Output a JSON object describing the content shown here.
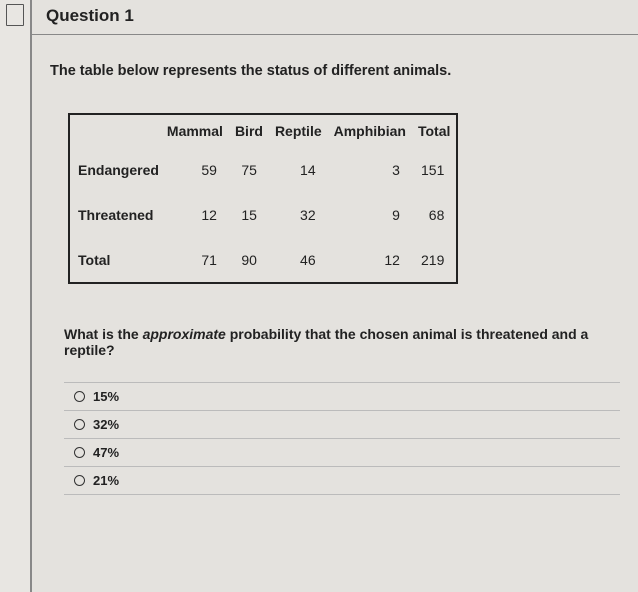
{
  "header": {
    "title": "Question 1"
  },
  "prompt": "The table below represents the status of different animals.",
  "table": {
    "columns": [
      "",
      "Mammal",
      "Bird",
      "Reptile",
      "Amphibian",
      "Total"
    ],
    "rows": [
      {
        "label": "Endangered",
        "values": [
          "59",
          "75",
          "14",
          "3",
          "151"
        ]
      },
      {
        "label": "Threatened",
        "values": [
          "12",
          "15",
          "32",
          "9",
          "68"
        ]
      },
      {
        "label": "Total",
        "values": [
          "71",
          "90",
          "46",
          "12",
          "219"
        ]
      }
    ]
  },
  "question_prefix": "What is the ",
  "question_em": "approximate",
  "question_suffix": " probability that the chosen animal is threatened and a reptile?",
  "options": [
    "15%",
    "32%",
    "47%",
    "21%"
  ],
  "colors": {
    "background": "#e4e2de",
    "border": "#222",
    "text": "#222"
  }
}
